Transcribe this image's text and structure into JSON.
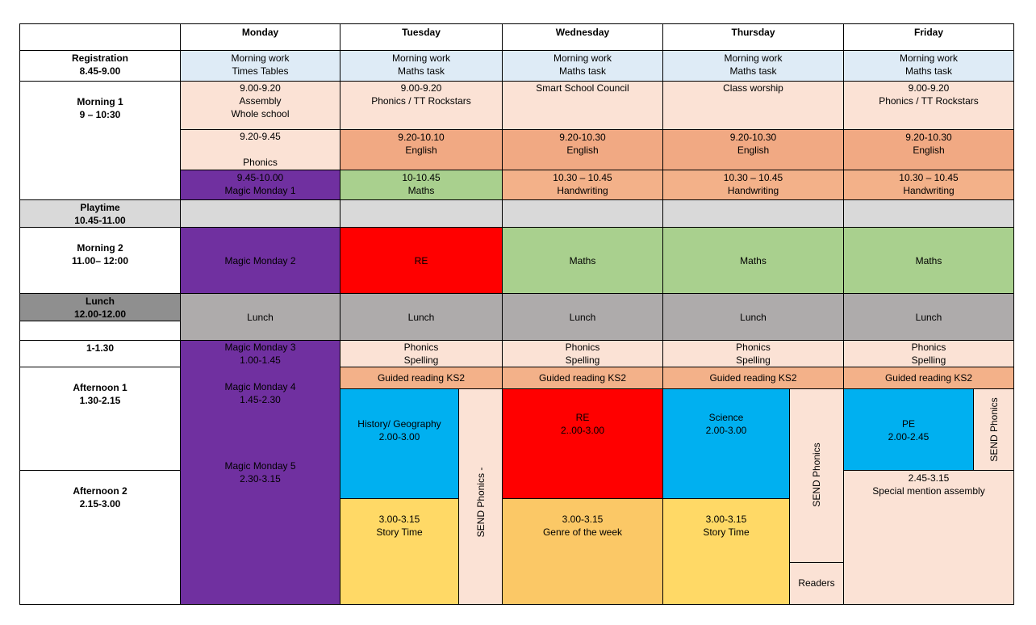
{
  "days": [
    "Monday",
    "Tuesday",
    "Wednesday",
    "Thursday",
    "Friday"
  ],
  "row_labels": {
    "registration": [
      "Registration",
      "8.45-9.00"
    ],
    "morning1": [
      "Morning 1",
      "9 – 10:30"
    ],
    "playtime": [
      "Playtime",
      "10.45-11.00"
    ],
    "morning2": [
      "Morning 2",
      "11.00– 12:00"
    ],
    "lunch": [
      "Lunch",
      "12.00-12.00"
    ],
    "after_lunch": [
      "1-1.30"
    ],
    "afternoon1": [
      "Afternoon 1",
      "1.30-2.15"
    ],
    "afternoon2": [
      "Afternoon 2",
      "2.15-3.00"
    ]
  },
  "registration": {
    "mon": [
      "Morning work",
      "Times Tables"
    ],
    "tue": [
      "Morning work",
      "Maths task"
    ],
    "wed": [
      "Morning work",
      "Maths task"
    ],
    "thu": [
      "Morning work",
      "Maths task"
    ],
    "fri": [
      "Morning work",
      "Maths task"
    ]
  },
  "morning1_a": {
    "mon": [
      "9.00-9.20",
      "Assembly",
      "Whole school"
    ],
    "tue": [
      "9.00-9.20",
      "Phonics / TT Rockstars"
    ],
    "wed": [
      "Smart School Council"
    ],
    "thu": [
      "Class worship"
    ],
    "fri": [
      "9.00-9.20",
      "Phonics / TT Rockstars"
    ]
  },
  "morning1_b": {
    "mon": [
      "9.20-9.45",
      "",
      "Phonics"
    ],
    "tue": [
      "9.20-10.10",
      "English"
    ],
    "wed": [
      "9.20-10.30",
      "English"
    ],
    "thu": [
      "9.20-10.30",
      "English"
    ],
    "fri": [
      "9.20-10.30",
      "English"
    ]
  },
  "morning1_c": {
    "mon": [
      "9.45-10.00",
      "Magic Monday 1"
    ],
    "tue": [
      "10-10.45",
      "Maths"
    ],
    "wed": [
      "10.30 – 10.45",
      "Handwriting"
    ],
    "thu": [
      "10.30 – 10.45",
      "Handwriting"
    ],
    "fri": [
      "10.30 – 10.45",
      "Handwriting"
    ]
  },
  "morning2": {
    "mon": "Magic Monday 2",
    "tue": "RE",
    "wed": "Maths",
    "thu": "Maths",
    "fri": "Maths"
  },
  "lunch_label": "Lunch",
  "monday_afternoon": {
    "mm3": [
      "Magic Monday 3",
      "1.00-1.45"
    ],
    "mm4": [
      "Magic Monday 4",
      "1.45-2.30"
    ],
    "mm5": [
      "Magic Monday 5",
      "2.30-3.15"
    ]
  },
  "phonics_spelling": [
    "Phonics",
    "Spelling"
  ],
  "guided_reading": "Guided reading  KS2",
  "afternoon": {
    "tue_main": [
      "History/ Geography",
      "2.00-3.00"
    ],
    "tue_story": [
      "3.00-3.15",
      "Story Time"
    ],
    "tue_side": "SEND Phonics -",
    "wed_main": [
      "RE",
      "2..00-3.00"
    ],
    "wed_genre": [
      "3.00-3.15",
      "Genre of the week"
    ],
    "thu_main": [
      "Science",
      "2.00-3.00"
    ],
    "thu_story": [
      "3.00-3.15",
      "Story Time"
    ],
    "thu_side": "SEND Phonics",
    "thu_readers": "Readers",
    "fri_main": [
      "PE",
      "2.00-2.45"
    ],
    "fri_side": "SEND Phonics",
    "fri_assembly": [
      "2.45-3.15",
      "Special mention assembly"
    ]
  }
}
